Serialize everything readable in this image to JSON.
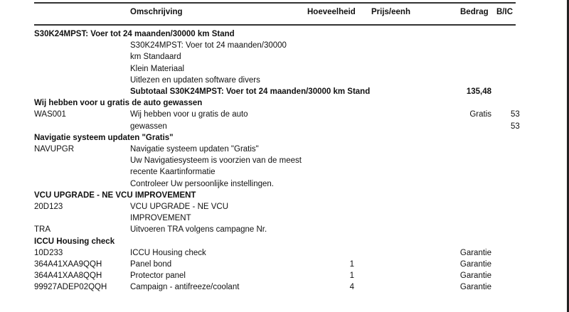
{
  "header": {
    "description": "Omschrijving",
    "quantity": "Hoeveelheid",
    "unit_price": "Prijs/eenh",
    "amount": "Bedrag",
    "bic": "B/IC"
  },
  "rows": [
    {
      "type": "section",
      "text": "S30K24MPST: Voer tot 24 maanden/30000 km Stand"
    },
    {
      "code": "",
      "desc": "S30K24MPST: Voer tot 24 maanden/30000",
      "qty": "",
      "amount": "",
      "bic": ""
    },
    {
      "code": "",
      "desc": "km Standaard",
      "qty": "",
      "amount": "",
      "bic": ""
    },
    {
      "code": "",
      "desc": "Klein Materiaal",
      "qty": "",
      "amount": "",
      "bic": ""
    },
    {
      "code": "",
      "desc": "Uitlezen en updaten software divers",
      "qty": "",
      "amount": "",
      "bic": ""
    },
    {
      "type": "subtotal",
      "desc": "Subtotaal S30K24MPST: Voer tot 24 maanden/30000 km Stand",
      "amount": "135,48"
    },
    {
      "type": "section",
      "text": "Wij hebben voor u gratis de auto gewassen"
    },
    {
      "code": "WAS001",
      "desc": "Wij hebben voor u gratis de auto",
      "qty": "",
      "amount": "Gratis",
      "bic": "53"
    },
    {
      "code": "",
      "desc": "gewassen",
      "qty": "",
      "amount": "",
      "bic": "53"
    },
    {
      "type": "section",
      "text": "Navigatie systeem updaten \"Gratis\""
    },
    {
      "code": "NAVUPGR",
      "desc": "Navigatie systeem updaten \"Gratis\"",
      "qty": "",
      "amount": "",
      "bic": ""
    },
    {
      "code": "",
      "desc": "Uw Navigatiesysteem is voorzien van de meest",
      "qty": "",
      "amount": "",
      "bic": ""
    },
    {
      "code": "",
      "desc": "recente Kaartinformatie",
      "qty": "",
      "amount": "",
      "bic": ""
    },
    {
      "code": "",
      "desc": "Controleer Uw persoonlijke instellingen.",
      "qty": "",
      "amount": "",
      "bic": ""
    },
    {
      "type": "section",
      "text": "VCU UPGRADE - NE VCU IMPROVEMENT"
    },
    {
      "code": "20D123",
      "desc": "VCU UPGRADE - NE VCU",
      "qty": "",
      "amount": "",
      "bic": ""
    },
    {
      "code": "",
      "desc": "IMPROVEMENT",
      "qty": "",
      "amount": "",
      "bic": ""
    },
    {
      "code": "TRA",
      "desc": "Uitvoeren TRA volgens campagne Nr.",
      "qty": "",
      "amount": "",
      "bic": ""
    },
    {
      "type": "section",
      "text": "ICCU Housing check"
    },
    {
      "code": "10D233",
      "desc": "ICCU Housing check",
      "qty": "",
      "amount": "Garantie",
      "bic": ""
    },
    {
      "code": "364A41XAA9QQH",
      "desc": "Panel bond",
      "qty": "1",
      "amount": "Garantie",
      "bic": ""
    },
    {
      "code": "364A41XAA8QQH",
      "desc": "Protector panel",
      "qty": "1",
      "amount": "Garantie",
      "bic": ""
    },
    {
      "code": "99927ADEP02QQH",
      "desc": "Campaign - antifreeze/coolant",
      "qty": "4",
      "amount": "Garantie",
      "bic": ""
    }
  ]
}
